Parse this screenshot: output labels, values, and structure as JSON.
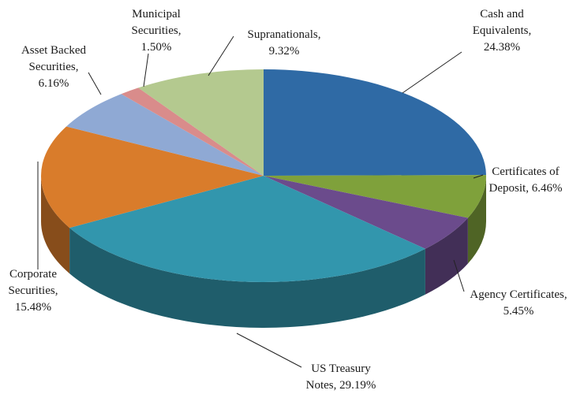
{
  "chart_data": {
    "type": "pie3d",
    "categories": [
      "Cash and Equivalents",
      "Certificates of Deposit",
      "Agency Certificates",
      "US Treasury Notes",
      "Corporate Securities",
      "Asset Backed Securities",
      "Municipal Securities",
      "Supranationals"
    ],
    "values": [
      24.38,
      6.46,
      5.45,
      29.19,
      15.48,
      6.16,
      1.5,
      9.32
    ],
    "value_labels": [
      "24.38%",
      "6.46%",
      "5.45%",
      "29.19%",
      "15.48%",
      "6.16%",
      "1.50%",
      "9.32%"
    ],
    "colors": [
      "#2f6aa5",
      "#7fa13b",
      "#6b4b8c",
      "#3296ad",
      "#d97c2b",
      "#8fa9d4",
      "#d98c8b",
      "#b4c98f"
    ]
  }
}
